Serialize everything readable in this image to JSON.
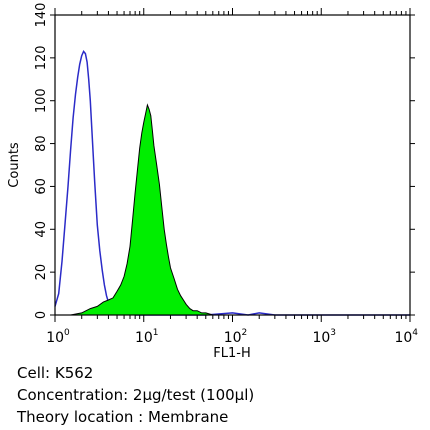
{
  "chart_data": {
    "type": "area",
    "xlabel": "FL1-H",
    "ylabel": "Counts",
    "xscale": "log",
    "xlim": [
      1,
      10000
    ],
    "ylim": [
      0,
      140
    ],
    "yticks": [
      "0",
      "20",
      "40",
      "60",
      "80",
      "100",
      "120",
      "140"
    ],
    "xticks": [
      {
        "base": "10",
        "exp": "0"
      },
      {
        "base": "10",
        "exp": "1"
      },
      {
        "base": "10",
        "exp": "2"
      },
      {
        "base": "10",
        "exp": "3"
      },
      {
        "base": "10",
        "exp": "4"
      }
    ],
    "grid": false,
    "series": [
      {
        "style": "outline",
        "color": "#2b2bc8",
        "x": [
          1.0,
          1.1,
          1.2,
          1.3,
          1.4,
          1.5,
          1.6,
          1.7,
          1.8,
          1.9,
          2.0,
          2.1,
          2.2,
          2.3,
          2.4,
          2.5,
          2.6,
          2.7,
          2.8,
          2.9,
          3.0,
          3.2,
          3.4,
          3.6,
          3.8,
          4.0,
          4.3,
          4.6,
          5.0,
          5.5,
          6.0,
          7.0,
          8.0,
          10,
          20,
          50,
          100,
          150,
          200,
          300,
          1000,
          10000
        ],
        "y": [
          4,
          10,
          25,
          43,
          60,
          77,
          92,
          103,
          111,
          117,
          121,
          123,
          122,
          118,
          110,
          100,
          87,
          74,
          62,
          52,
          42,
          30,
          21,
          14,
          9,
          6,
          4,
          3,
          2,
          1,
          1,
          1,
          0,
          0,
          0,
          0,
          1,
          0,
          1,
          0,
          0,
          0
        ]
      },
      {
        "style": "filled",
        "color": "#00ee00",
        "edge": "#000000",
        "x": [
          1.0,
          1.5,
          2.0,
          2.5,
          3.0,
          3.5,
          4.0,
          4.5,
          5.0,
          5.5,
          6.0,
          6.5,
          7.0,
          7.5,
          8.0,
          8.5,
          9.0,
          9.5,
          10,
          10.5,
          11,
          11.5,
          12,
          12.5,
          13,
          14,
          15,
          16,
          17,
          18,
          19,
          20,
          22,
          24,
          26,
          28,
          30,
          33,
          36,
          40,
          45,
          50,
          60,
          70,
          80,
          100,
          1000,
          10000
        ],
        "y": [
          0,
          0,
          1,
          3,
          4,
          6,
          7,
          8,
          11,
          14,
          18,
          24,
          32,
          45,
          57,
          68,
          78,
          85,
          90,
          94,
          98,
          96,
          93,
          86,
          79,
          70,
          61,
          50,
          40,
          33,
          27,
          22,
          17,
          12,
          9,
          7,
          5,
          3,
          2,
          2,
          1,
          1,
          0,
          0,
          0,
          0,
          0,
          0
        ]
      }
    ]
  },
  "captions": {
    "cell": "Cell: K562",
    "concentration": "Concentration: 2μg/test (100μl)",
    "location": "Theory location : Membrane"
  }
}
